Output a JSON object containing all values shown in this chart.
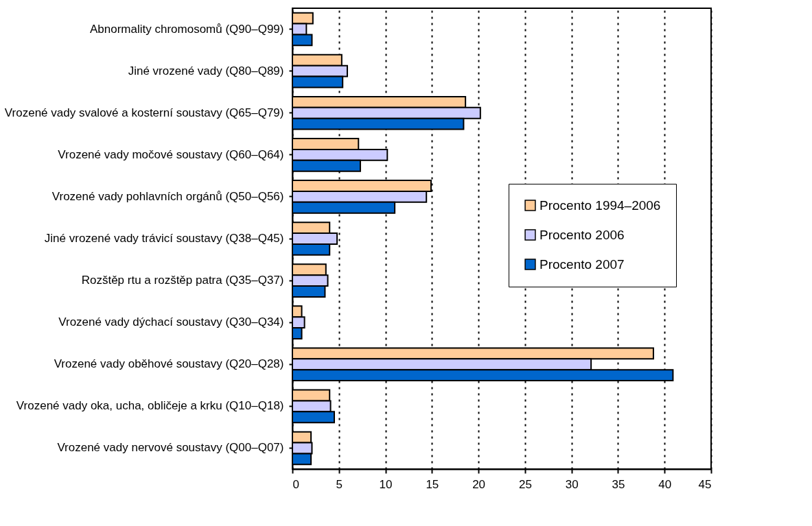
{
  "chart_data": {
    "type": "bar",
    "orientation": "horizontal",
    "categories": [
      "Abnormality chromosomů (Q90–Q99)",
      "Jiné vrozené vady (Q80–Q89)",
      "Vrozené vady svalové a kosterní soustavy (Q65–Q79)",
      "Vrozené vady močové soustavy (Q60–Q64)",
      "Vrozené vady pohlavních orgánů (Q50–Q56)",
      "Jiné vrozené vady trávicí soustavy (Q38–Q45)",
      "Rozštěp rtu a rozštěp patra (Q35–Q37)",
      "Vrozené vady dýchací soustavy (Q30–Q34)",
      "Vrozené vady oběhové soustavy (Q20–Q28)",
      "Vrozené vady oka, ucha, obličeje a krku (Q10–Q18)",
      "Vrozené vady nervové soustavy (Q00–Q07)"
    ],
    "series": [
      {
        "name": "Procento 1994–2006",
        "color": "#ffcc99",
        "values": [
          2.2,
          5.3,
          18.6,
          7.1,
          14.9,
          4.0,
          3.6,
          1.0,
          38.8,
          4.0,
          2.0
        ]
      },
      {
        "name": "Procento 2006",
        "color": "#ccccff",
        "values": [
          1.5,
          5.9,
          20.2,
          10.2,
          14.4,
          4.8,
          3.8,
          1.3,
          32.1,
          4.1,
          2.1
        ]
      },
      {
        "name": "Procento 2007",
        "color": "#0066cc",
        "values": [
          2.1,
          5.4,
          18.4,
          7.3,
          11.0,
          4.0,
          3.5,
          1.0,
          40.9,
          4.5,
          2.0
        ]
      }
    ],
    "xlim": [
      0,
      45
    ],
    "xticks": [
      0,
      5,
      10,
      15,
      20,
      25,
      30,
      35,
      40,
      45
    ],
    "grid": "x",
    "legend": "right"
  }
}
